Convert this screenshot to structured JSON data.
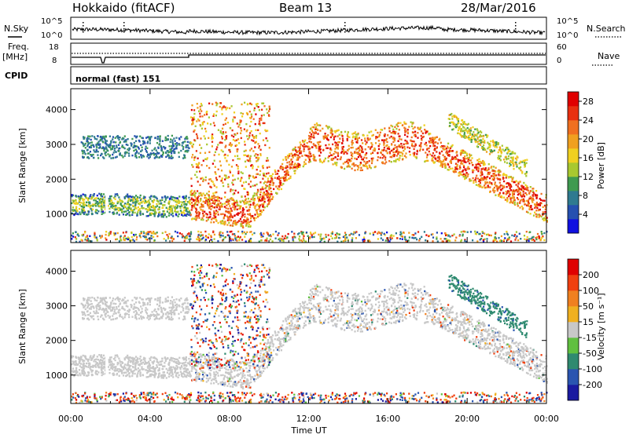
{
  "header": {
    "title": "Hokkaido (fitACF)",
    "beam": "Beam 13",
    "date": "28/Mar/2016"
  },
  "top_panel": {
    "left_label": "N.Sky",
    "right_label": "N.Search",
    "y_ticks": [
      "10^5",
      "10^0"
    ]
  },
  "freq_panel": {
    "left_label_1": "Freq.",
    "left_label_2": "[MHz]",
    "left_ticks": [
      "18",
      "8"
    ],
    "right_ticks": [
      "60",
      "0"
    ],
    "right_label": "Nave"
  },
  "cpid": {
    "label": "CPID",
    "mode": "normal (fast) 151"
  },
  "chart_data": [
    {
      "type": "heatmap",
      "title": "",
      "ylabel": "Slant Range [km]",
      "xlabel": "",
      "x_ticks": [
        "00:00",
        "04:00",
        "08:00",
        "12:00",
        "16:00",
        "20:00",
        "00:00"
      ],
      "y_ticks": [
        1000,
        2000,
        3000,
        4000
      ],
      "ylim": [
        180,
        4600
      ],
      "xlim_hours": [
        0,
        24
      ],
      "colorbar": {
        "label": "Power [dB]",
        "ticks": [
          "4",
          "8",
          "12",
          "16",
          "20",
          "24",
          "28"
        ],
        "range": [
          0,
          30
        ],
        "colors": [
          "#1010e0",
          "#2550b0",
          "#2f7a90",
          "#3f9a50",
          "#a8c830",
          "#f0d020",
          "#f0a020",
          "#f07020",
          "#e83010",
          "#e00000"
        ]
      }
    },
    {
      "type": "heatmap",
      "title": "",
      "ylabel": "Slant Range [km]",
      "xlabel": "Time UT",
      "x_ticks": [
        "00:00",
        "04:00",
        "08:00",
        "12:00",
        "16:00",
        "20:00",
        "00:00"
      ],
      "y_ticks": [
        1000,
        2000,
        3000,
        4000
      ],
      "ylim": [
        180,
        4600
      ],
      "xlim_hours": [
        0,
        24
      ],
      "colorbar": {
        "label": "Velocity [m s⁻¹]",
        "ticks": [
          "200",
          "100",
          "50",
          "15",
          "-15",
          "-50",
          "-100",
          "-200"
        ],
        "colors": [
          "#1a1aa0",
          "#2a55b0",
          "#2f8a70",
          "#60c040",
          "#c8c8c8",
          "#f0b020",
          "#f08020",
          "#f04010",
          "#e00000"
        ]
      }
    }
  ]
}
